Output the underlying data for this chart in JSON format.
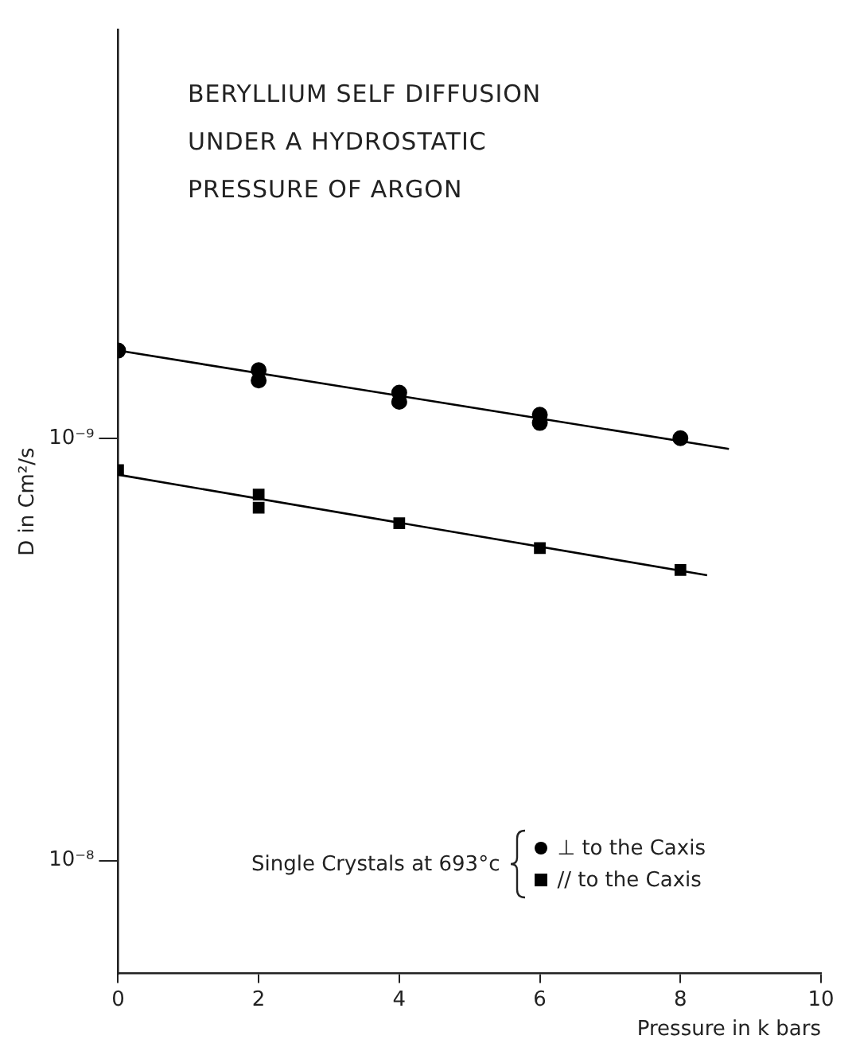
{
  "chart_data": {
    "type": "scatter",
    "title": "BERYLLIUM SELF DIFFUSION UNDER A HYDROSTATIC PRESSURE OF ARGON",
    "xlabel": "Pressure in k bars",
    "ylabel": "D in Cm²/s",
    "annotations": [
      "Single Crystals at 693°c"
    ],
    "xlim": [
      0,
      10
    ],
    "xticks": [
      0,
      2,
      4,
      6,
      8,
      10
    ],
    "log": "y",
    "ylim": [
      1.85e-08,
      1.08e-10
    ],
    "yticks": [
      {
        "value": 1e-09,
        "label": "10⁻⁹"
      },
      {
        "value": 1e-08,
        "label": "10⁻⁸"
      }
    ],
    "grid": false,
    "legend": "bottom",
    "series": [
      {
        "name": "⊥ to the Caxis",
        "color": "#000000",
        "marker": "circle",
        "x": [
          0,
          2,
          2,
          4,
          4,
          6,
          6,
          8
        ],
        "values": [
          6.2e-10,
          6.9e-10,
          7.3e-10,
          7.8e-10,
          8.2e-10,
          8.8e-10,
          9.2e-10,
          1e-09
        ]
      },
      {
        "name": "// to the Caxis",
        "color": "#000000",
        "marker": "square",
        "x": [
          0,
          2,
          2,
          4,
          6,
          8
        ],
        "values": [
          1.19e-09,
          1.36e-09,
          1.46e-09,
          1.59e-09,
          1.82e-09,
          2.05e-09
        ]
      },
      {
        "type": "line",
        "color": "#000000",
        "marker": "none",
        "x": [
          0,
          8.69
        ],
        "values": [
          6.2e-10,
          1.06e-09
        ]
      },
      {
        "type": "line",
        "color": "#000000",
        "marker": "none",
        "x": [
          0,
          8.38
        ],
        "values": [
          1.22e-09,
          2.11e-09
        ]
      }
    ]
  }
}
